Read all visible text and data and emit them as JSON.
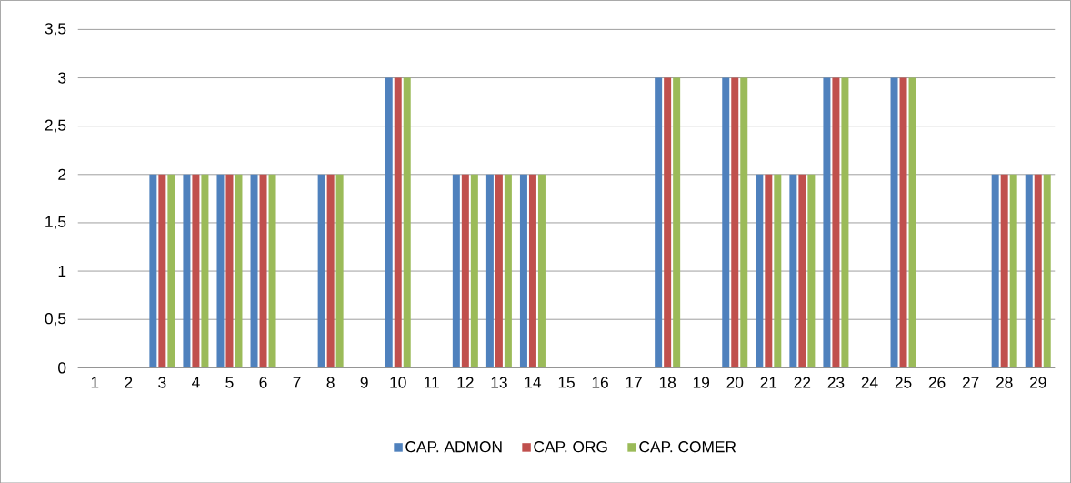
{
  "chart_data": {
    "type": "bar",
    "categories": [
      "1",
      "2",
      "3",
      "4",
      "5",
      "6",
      "7",
      "8",
      "9",
      "10",
      "11",
      "12",
      "13",
      "14",
      "15",
      "16",
      "17",
      "18",
      "19",
      "20",
      "21",
      "22",
      "23",
      "24",
      "25",
      "26",
      "27",
      "28",
      "29"
    ],
    "series": [
      {
        "name": "CAP. ADMON",
        "color": "#4f81bd",
        "values": [
          0,
          0,
          2,
          2,
          2,
          2,
          0,
          2,
          0,
          3,
          0,
          2,
          2,
          2,
          0,
          0,
          0,
          3,
          0,
          3,
          2,
          2,
          3,
          0,
          3,
          0,
          0,
          2,
          2
        ]
      },
      {
        "name": "CAP. ORG",
        "color": "#c0504d",
        "values": [
          0,
          0,
          2,
          2,
          2,
          2,
          0,
          2,
          0,
          3,
          0,
          2,
          2,
          2,
          0,
          0,
          0,
          3,
          0,
          3,
          2,
          2,
          3,
          0,
          3,
          0,
          0,
          2,
          2
        ]
      },
      {
        "name": "CAP. COMER",
        "color": "#9bbb59",
        "values": [
          0,
          0,
          2,
          2,
          2,
          2,
          0,
          2,
          0,
          3,
          0,
          2,
          2,
          2,
          0,
          0,
          0,
          3,
          0,
          3,
          2,
          2,
          3,
          0,
          3,
          0,
          0,
          2,
          2
        ]
      }
    ],
    "ylim": [
      0,
      3.5
    ],
    "yticks": [
      0,
      {
        "value": 0.5,
        "label": "0,5"
      },
      1,
      {
        "value": 1.5,
        "label": "1,5"
      },
      2,
      {
        "value": 2.5,
        "label": "2,5"
      },
      3,
      {
        "value": 3.5,
        "label": "3,5"
      }
    ],
    "grid": "y",
    "legend": "bottom"
  }
}
